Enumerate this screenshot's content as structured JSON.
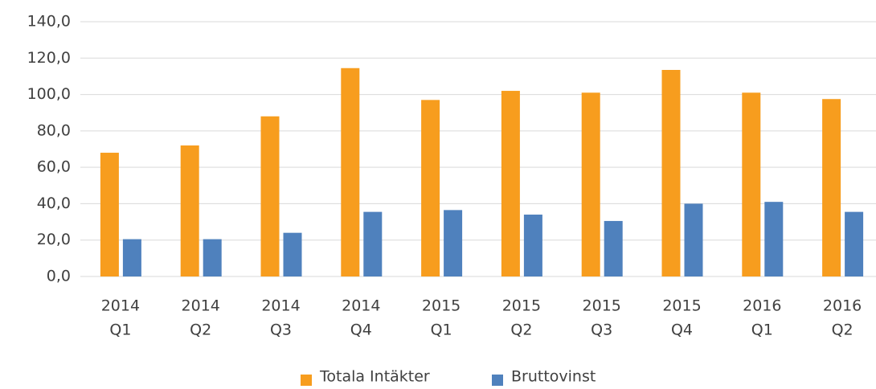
{
  "chart_data": {
    "type": "bar",
    "categories": [
      [
        "2014",
        "Q1"
      ],
      [
        "2014",
        "Q2"
      ],
      [
        "2014",
        "Q3"
      ],
      [
        "2014",
        "Q4"
      ],
      [
        "2015",
        "Q1"
      ],
      [
        "2015",
        "Q2"
      ],
      [
        "2015",
        "Q3"
      ],
      [
        "2015",
        "Q4"
      ],
      [
        "2016",
        "Q1"
      ],
      [
        "2016",
        "Q2"
      ]
    ],
    "series": [
      {
        "name": "Totala Intäkter",
        "color": "#f79d1e",
        "values": [
          68,
          72,
          88,
          114.5,
          97,
          102,
          101,
          113.5,
          101,
          97.5
        ]
      },
      {
        "name": "Bruttovinst",
        "color": "#4f81bd",
        "values": [
          20.5,
          20.5,
          24,
          35.5,
          36.5,
          34,
          30.5,
          40,
          41,
          35.5
        ]
      }
    ],
    "ylim": [
      0,
      140
    ],
    "yticks": [
      {
        "value": 0,
        "label": "0,0"
      },
      {
        "value": 20,
        "label": "20,0"
      },
      {
        "value": 40,
        "label": "40,0"
      },
      {
        "value": 60,
        "label": "60,0"
      },
      {
        "value": 80,
        "label": "80,0"
      },
      {
        "value": 100,
        "label": "100,0"
      },
      {
        "value": 120,
        "label": "120,0"
      },
      {
        "value": 140,
        "label": "140,0"
      }
    ],
    "grid": true,
    "legend": "bottom"
  }
}
